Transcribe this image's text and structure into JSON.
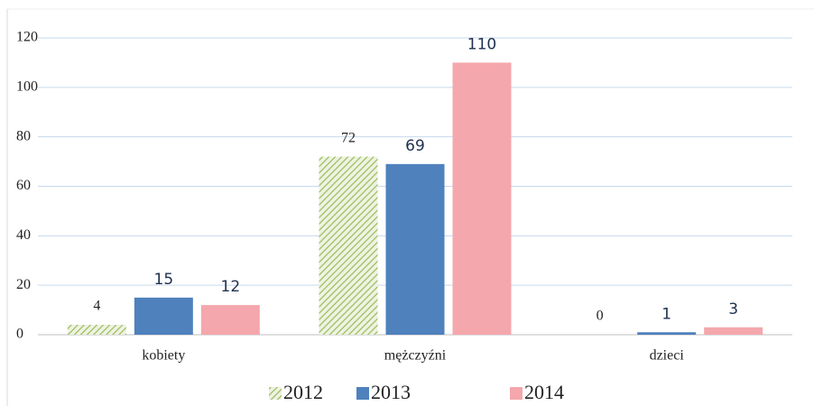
{
  "chart_data": {
    "type": "bar",
    "categories": [
      "kobiety",
      "mężczyźni",
      "dzieci"
    ],
    "series": [
      {
        "name": "2012",
        "color": "#9bbb59",
        "hatch": true,
        "values": [
          4,
          72,
          0
        ]
      },
      {
        "name": "2013",
        "color": "#4f81bd",
        "values": [
          15,
          69,
          1
        ]
      },
      {
        "name": "2014",
        "color": "#f4a7ad",
        "values": [
          12,
          110,
          3
        ]
      }
    ],
    "ylim": [
      0,
      120
    ],
    "yticks": [
      0,
      20,
      40,
      60,
      80,
      100,
      120
    ],
    "grid": true,
    "legend": "bottom"
  }
}
